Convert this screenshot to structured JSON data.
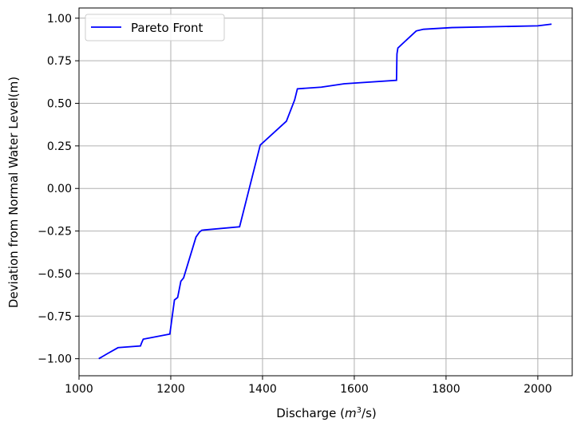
{
  "chart_data": {
    "type": "line",
    "xlabel_prefix": "Discharge (",
    "xlabel_math": "m",
    "xlabel_sup": "3",
    "xlabel_suffix": "/s)",
    "ylabel": "Deviation from Normal Water Level(m)",
    "xlim": [
      1000,
      2075
    ],
    "ylim": [
      -1.1,
      1.06
    ],
    "xticks": [
      1000,
      1200,
      1400,
      1600,
      1800,
      2000
    ],
    "xtick_labels": [
      "1000",
      "1200",
      "1400",
      "1600",
      "1800",
      "2000"
    ],
    "yticks": [
      -1.0,
      -0.75,
      -0.5,
      -0.25,
      0.0,
      0.25,
      0.5,
      0.75,
      1.0
    ],
    "ytick_labels": [
      "−1.00",
      "−0.75",
      "−0.50",
      "−0.25",
      "0.00",
      "0.25",
      "0.50",
      "0.75",
      "1.00"
    ],
    "grid": true,
    "legend_position": "top-left",
    "series": [
      {
        "name": "Pareto Front",
        "color": "#0000ff",
        "x": [
          1043,
          1062,
          1085,
          1134,
          1136,
          1140,
          1198,
          1208,
          1215,
          1222,
          1228,
          1255,
          1263,
          1268,
          1350,
          1395,
          1452,
          1470,
          1476,
          1528,
          1578,
          1692,
          1693,
          1695,
          1735,
          1751,
          1813,
          2000,
          2030
        ],
        "y": [
          -1.0,
          -0.97,
          -0.935,
          -0.925,
          -0.91,
          -0.885,
          -0.855,
          -0.655,
          -0.64,
          -0.545,
          -0.525,
          -0.285,
          -0.255,
          -0.245,
          -0.225,
          0.255,
          0.395,
          0.52,
          0.585,
          0.595,
          0.615,
          0.635,
          0.79,
          0.825,
          0.925,
          0.935,
          0.945,
          0.955,
          0.965
        ]
      }
    ]
  }
}
